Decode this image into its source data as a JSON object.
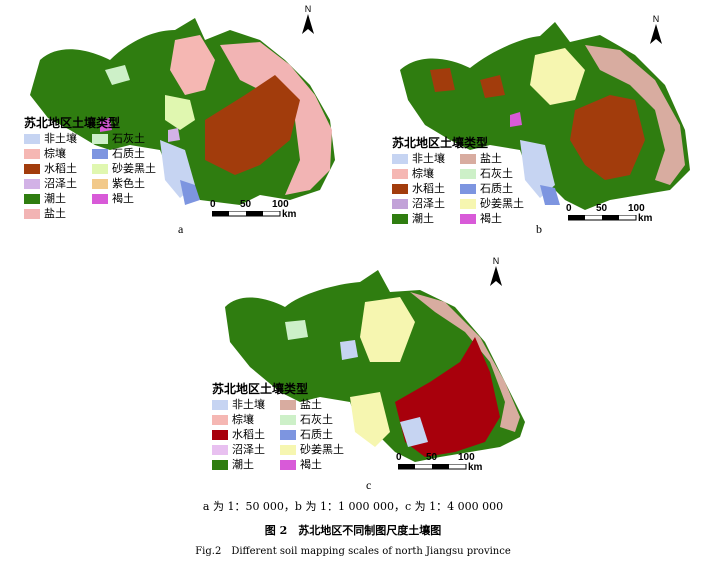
{
  "panels": [
    {
      "id": "a",
      "label": "a",
      "legend_title": "苏北地区土壤类型",
      "legend": [
        {
          "name": "非土壤",
          "color": "#c6d4f2"
        },
        {
          "name": "石灰土",
          "color": "#cdf0c8"
        },
        {
          "name": "棕壤",
          "color": "#f5b7b3"
        },
        {
          "name": "石质土",
          "color": "#7d95e0"
        },
        {
          "name": "水稻土",
          "color": "#a23c0c"
        },
        {
          "name": "砂姜黑土",
          "color": "#e0f7b0"
        },
        {
          "name": "沼泽土",
          "color": "#d2b2e6"
        },
        {
          "name": "紫色土",
          "color": "#f2c98a"
        },
        {
          "name": "潮土",
          "color": "#2f7d10"
        },
        {
          "name": "褐土",
          "color": "#d85ad8"
        },
        {
          "name": "盐土",
          "color": "#f2b4b4"
        }
      ],
      "scale": {
        "ticks": [
          "0",
          "50",
          "100"
        ],
        "unit": "km"
      },
      "north": "N"
    },
    {
      "id": "b",
      "label": "b",
      "legend_title": "苏北地区土壤类型",
      "legend": [
        {
          "name": "非土壤",
          "color": "#c6d4f2"
        },
        {
          "name": "盐土",
          "color": "#d8aca0"
        },
        {
          "name": "棕壤",
          "color": "#f5b7b3"
        },
        {
          "name": "石灰土",
          "color": "#cdf0c8"
        },
        {
          "name": "水稻土",
          "color": "#a23c0c"
        },
        {
          "name": "石质土",
          "color": "#7d95e0"
        },
        {
          "name": "沼泽土",
          "color": "#c2a2d8"
        },
        {
          "name": "砂姜黑土",
          "color": "#f6f6b0"
        },
        {
          "name": "潮土",
          "color": "#2f7d10"
        },
        {
          "name": "褐土",
          "color": "#d85ad8"
        }
      ],
      "scale": {
        "ticks": [
          "0",
          "50",
          "100"
        ],
        "unit": "km"
      },
      "north": "N"
    },
    {
      "id": "c",
      "label": "c",
      "legend_title": "苏北地区土壤类型",
      "legend": [
        {
          "name": "非土壤",
          "color": "#c6d4f2"
        },
        {
          "name": "盐土",
          "color": "#d8aca0"
        },
        {
          "name": "棕壤",
          "color": "#f5b7b3"
        },
        {
          "name": "石灰土",
          "color": "#cdf0c8"
        },
        {
          "name": "水稻土",
          "color": "#a8000c"
        },
        {
          "name": "石质土",
          "color": "#7d95e0"
        },
        {
          "name": "沼泽土",
          "color": "#e8c0f0"
        },
        {
          "name": "砂姜黑土",
          "color": "#f6f6b0"
        },
        {
          "name": "潮土",
          "color": "#2f7d10"
        },
        {
          "name": "褐土",
          "color": "#d85ad8"
        }
      ],
      "scale": {
        "ticks": [
          "0",
          "50",
          "100"
        ],
        "unit": "km"
      },
      "north": "N"
    }
  ],
  "scale_note": "a 为 1：50 000，b 为 1：1 000 000，c 为 1：4 000 000",
  "caption_cn": "图 2　苏北地区不同制图尺度土壤图",
  "caption_en": "Fig.2　Different soil mapping scales of north Jiangsu province"
}
